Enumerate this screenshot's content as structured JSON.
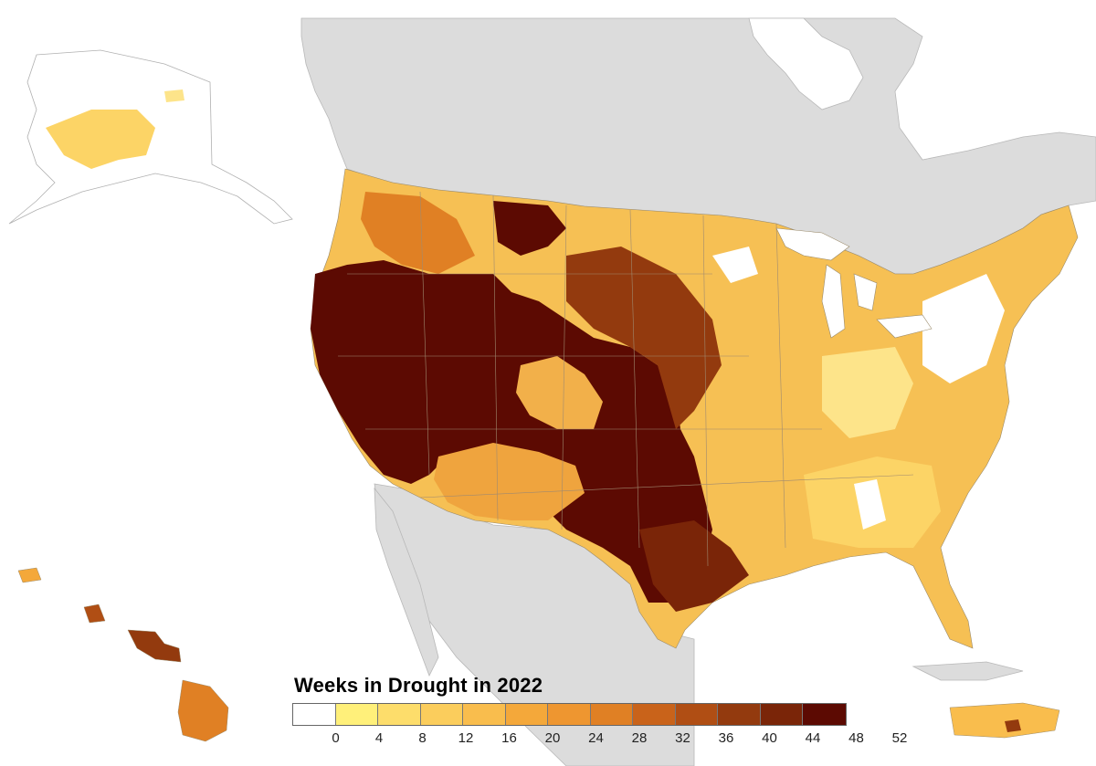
{
  "legend": {
    "title": "Weeks in Drought in 2022",
    "ticks": [
      "0",
      "4",
      "8",
      "12",
      "16",
      "20",
      "24",
      "28",
      "32",
      "36",
      "40",
      "44",
      "48",
      "52"
    ],
    "colors": [
      "#ffffff",
      "#fff07a",
      "#fddd6b",
      "#fbcd5c",
      "#f9bd4d",
      "#f4a83a",
      "#ee9630",
      "#e08024",
      "#c9631a",
      "#b04e14",
      "#933a0e",
      "#7a2508",
      "#5c0a02"
    ]
  },
  "map": {
    "land_color": "#dcdcdc",
    "water_color": "#ffffff",
    "regions": {
      "contiguous_us": "mixed drought durations; 52 weeks across West, Southwest, Texas",
      "alaska": "light drought in southwest",
      "hawaii": "moderate to severe drought on islands",
      "puerto_rico": "light drought with dark patch in south"
    }
  }
}
